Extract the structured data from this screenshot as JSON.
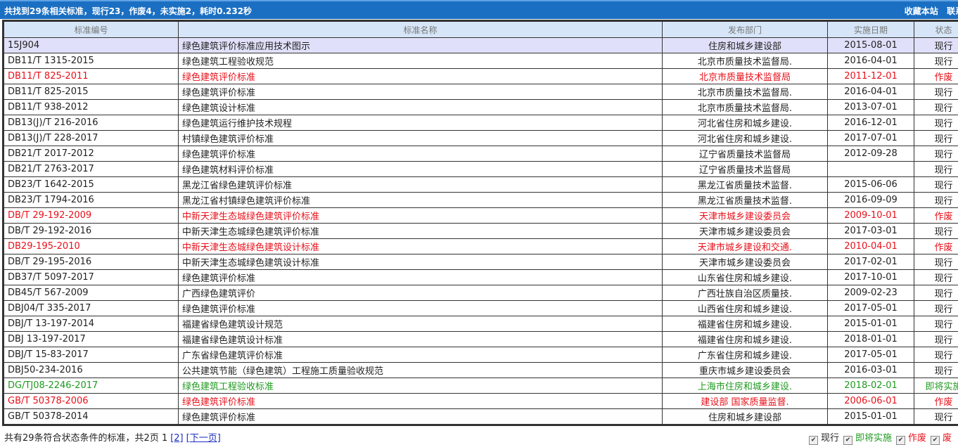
{
  "topbar": {
    "summary": "共找到29条相关标准，现行23，作废4，未实施2，耗时0.232秒",
    "links": [
      "收藏本站",
      "联系客"
    ]
  },
  "columns": [
    "标准编号",
    "标准名称",
    "发布部门",
    "实施日期",
    "状态"
  ],
  "colors": {
    "topbar": "#1b6fc2",
    "header": "#d6e6f8",
    "highlight": "#e0e0fa",
    "obsolete": "#e8101a",
    "upcoming": "#1f9a1f"
  },
  "rows": [
    {
      "code": "15J904",
      "name": "绿色建筑评价标准应用技术图示",
      "dept": "住房和城乡建设部",
      "date": "2015-08-01",
      "status": "现行",
      "type": "hl"
    },
    {
      "code": "DB11/T 1315-2015",
      "name": "绿色建筑工程验收规范",
      "dept": "北京市质量技术监督局.",
      "date": "2016-04-01",
      "status": "现行",
      "type": ""
    },
    {
      "code": "DB11/T 825-2011",
      "name": "绿色建筑评价标准",
      "dept": "北京市质量技术监督局",
      "date": "2011-12-01",
      "status": "作废",
      "type": "red"
    },
    {
      "code": "DB11/T 825-2015",
      "name": "绿色建筑评价标准",
      "dept": "北京市质量技术监督局.",
      "date": "2016-04-01",
      "status": "现行",
      "type": ""
    },
    {
      "code": "DB11/T 938-2012",
      "name": "绿色建筑设计标准",
      "dept": "北京市质量技术监督局.",
      "date": "2013-07-01",
      "status": "现行",
      "type": ""
    },
    {
      "code": "DB13(J)/T 216-2016",
      "name": "绿色建筑运行维护技术规程",
      "dept": "河北省住房和城乡建设.",
      "date": "2016-12-01",
      "status": "现行",
      "type": ""
    },
    {
      "code": "DB13(J)/T 228-2017",
      "name": "村镇绿色建筑评价标准",
      "dept": "河北省住房和城乡建设.",
      "date": "2017-07-01",
      "status": "现行",
      "type": ""
    },
    {
      "code": "DB21/T 2017-2012",
      "name": "绿色建筑评价标准",
      "dept": "辽宁省质量技术监督局",
      "date": "2012-09-28",
      "status": "现行",
      "type": ""
    },
    {
      "code": "DB21/T 2763-2017",
      "name": "绿色建筑材料评价标准",
      "dept": "辽宁省质量技术监督局",
      "date": "",
      "status": "现行",
      "type": ""
    },
    {
      "code": "DB23/T 1642-2015",
      "name": "黑龙江省绿色建筑评价标准",
      "dept": "黑龙江省质量技术监督.",
      "date": "2015-06-06",
      "status": "现行",
      "type": ""
    },
    {
      "code": "DB23/T 1794-2016",
      "name": "黑龙江省村镇绿色建筑评价标准",
      "dept": "黑龙江省质量技术监督.",
      "date": "2016-09-09",
      "status": "现行",
      "type": ""
    },
    {
      "code": "DB/T 29-192-2009",
      "name": "中新天津生态城绿色建筑评价标准",
      "dept": "天津市城乡建设委员会",
      "date": "2009-10-01",
      "status": "作废",
      "type": "red"
    },
    {
      "code": "DB/T 29-192-2016",
      "name": "中新天津生态城绿色建筑评价标准",
      "dept": "天津市城乡建设委员会",
      "date": "2017-03-01",
      "status": "现行",
      "type": ""
    },
    {
      "code": "DB29-195-2010",
      "name": "中新天津生态城绿色建筑设计标准",
      "dept": "天津市城乡建设和交通.",
      "date": "2010-04-01",
      "status": "作废",
      "type": "red"
    },
    {
      "code": "DB/T 29-195-2016",
      "name": "中新天津生态城绿色建筑设计标准",
      "dept": "天津市城乡建设委员会",
      "date": "2017-02-01",
      "status": "现行",
      "type": ""
    },
    {
      "code": "DB37/T 5097-2017",
      "name": "绿色建筑评价标准",
      "dept": "山东省住房和城乡建设.",
      "date": "2017-10-01",
      "status": "现行",
      "type": ""
    },
    {
      "code": "DB45/T 567-2009",
      "name": "广西绿色建筑评价",
      "dept": "广西壮族自治区质量技.",
      "date": "2009-02-23",
      "status": "现行",
      "type": ""
    },
    {
      "code": "DBJ04/T 335-2017",
      "name": "绿色建筑评价标准",
      "dept": "山西省住房和城乡建设.",
      "date": "2017-05-01",
      "status": "现行",
      "type": ""
    },
    {
      "code": "DBJ/T 13-197-2014",
      "name": "福建省绿色建筑设计规范",
      "dept": "福建省住房和城乡建设.",
      "date": "2015-01-01",
      "status": "现行",
      "type": ""
    },
    {
      "code": "DBJ 13-197-2017",
      "name": "福建省绿色建筑设计标准",
      "dept": "福建省住房和城乡建设.",
      "date": "2018-01-01",
      "status": "现行",
      "type": ""
    },
    {
      "code": "DBJ/T 15-83-2017",
      "name": "广东省绿色建筑评价标准",
      "dept": "广东省住房和城乡建设.",
      "date": "2017-05-01",
      "status": "现行",
      "type": ""
    },
    {
      "code": "DBJ50-234-2016",
      "name": "公共建筑节能（绿色建筑）工程施工质量验收规范",
      "dept": "重庆市城乡建设委员会",
      "date": "2016-03-01",
      "status": "现行",
      "type": ""
    },
    {
      "code": "DG/TJ08-2246-2017",
      "name": "绿色建筑工程验收标准",
      "dept": "上海市住房和城乡建设.",
      "date": "2018-02-01",
      "status": "即将实施",
      "type": "green"
    },
    {
      "code": "GB/T 50378-2006",
      "name": "绿色建筑评价标准",
      "dept": "建设部 国家质量监督.",
      "date": "2006-06-01",
      "status": "作废",
      "type": "red"
    },
    {
      "code": "GB/T 50378-2014",
      "name": "绿色建筑评价标准",
      "dept": "住房和城乡建设部",
      "date": "2015-01-01",
      "status": "现行",
      "type": ""
    }
  ],
  "footer": {
    "summary": "共有29条符合状态条件的标准，共2页 1",
    "page2": "[2]",
    "next": "[下一页]"
  },
  "filters": [
    {
      "label": "现行",
      "checked": true,
      "color": "#222"
    },
    {
      "label": "即将实施",
      "checked": true,
      "color": "#1f9a1f"
    },
    {
      "label": "作废",
      "checked": true,
      "color": "#e8101a"
    },
    {
      "label": "废",
      "checked": true,
      "color": "#e8101a"
    }
  ]
}
